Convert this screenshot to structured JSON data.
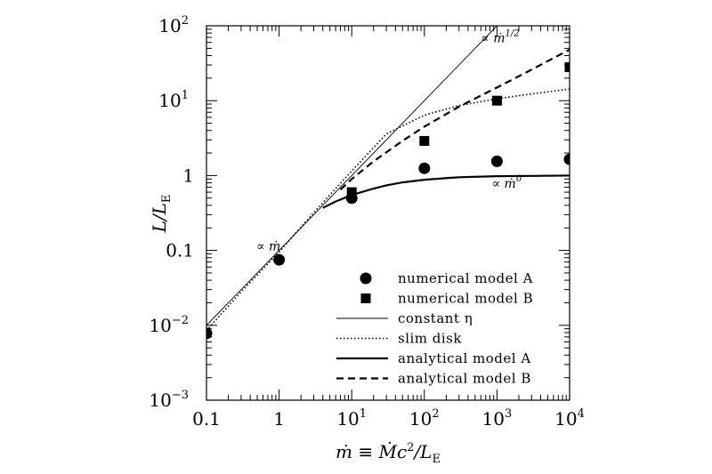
{
  "chart_data": {
    "type": "scatter",
    "x_scale": "log",
    "y_scale": "log",
    "xlim": [
      0.1,
      10000
    ],
    "ylim": [
      0.001,
      100
    ],
    "grid": false,
    "legend_position": "bottom-right",
    "xlabel": {
      "main": "ṁ ≡ Ṁc",
      "sup": "2",
      "mid": "/L",
      "sub": "E"
    },
    "ylabel": {
      "main": "L/L",
      "sub": "E"
    },
    "x_ticks": [
      {
        "value": 0.1,
        "base": "0.1",
        "exp": ""
      },
      {
        "value": 1,
        "base": "1",
        "exp": ""
      },
      {
        "value": 10,
        "base": "10",
        "exp": "1"
      },
      {
        "value": 100,
        "base": "10",
        "exp": "2"
      },
      {
        "value": 1000,
        "base": "10",
        "exp": "3"
      },
      {
        "value": 10000,
        "base": "10",
        "exp": "4"
      }
    ],
    "y_ticks": [
      {
        "value": 0.001,
        "base": "10",
        "exp": "−3"
      },
      {
        "value": 0.01,
        "base": "10",
        "exp": "−2"
      },
      {
        "value": 0.1,
        "base": "0.1",
        "exp": ""
      },
      {
        "value": 1,
        "base": "1",
        "exp": ""
      },
      {
        "value": 10,
        "base": "10",
        "exp": "1"
      },
      {
        "value": 100,
        "base": "10",
        "exp": "2"
      }
    ],
    "series": [
      {
        "name": "numerical model A",
        "style": "circle",
        "x": [
          0.1,
          1,
          10,
          100,
          1000,
          10000
        ],
        "y": [
          0.0078,
          0.075,
          0.5,
          1.25,
          1.55,
          1.65
        ]
      },
      {
        "name": "numerical model B",
        "style": "square",
        "x": [
          10,
          100,
          1000,
          10000
        ],
        "y": [
          0.6,
          2.9,
          10,
          28
        ]
      },
      {
        "name": "constant η",
        "style": "thin",
        "x": [
          0.1,
          1,
          10,
          100,
          1000
        ],
        "y": [
          0.01,
          0.1,
          1,
          10,
          100
        ]
      },
      {
        "name": "slim disk",
        "style": "dotted",
        "x": [
          0.1,
          0.3,
          1,
          3,
          10,
          30,
          100,
          300,
          1000,
          3000,
          10000
        ],
        "y": [
          0.0085,
          0.028,
          0.095,
          0.32,
          1.15,
          3.6,
          6.4,
          8.6,
          10.6,
          12.3,
          14.3
        ]
      },
      {
        "name": "analytical model A",
        "style": "solid",
        "x": [
          4,
          6,
          10,
          20,
          30,
          50,
          100,
          300,
          1000,
          3000,
          10000
        ],
        "y": [
          0.37,
          0.45,
          0.55,
          0.67,
          0.74,
          0.81,
          0.88,
          0.95,
          0.98,
          0.99,
          1.0
        ]
      },
      {
        "name": "analytical model B",
        "style": "dashed",
        "x": [
          7,
          10,
          20,
          50,
          100,
          300,
          1000,
          3000,
          10000
        ],
        "y": [
          0.65,
          0.9,
          1.55,
          2.9,
          4.5,
          8.3,
          15,
          26,
          48
        ]
      }
    ],
    "annotations": [
      {
        "text": "∝ ṁ",
        "sup": "",
        "x": 1.05,
        "y": 0.1
      },
      {
        "text": "∝ ṁ",
        "sup": "1/2",
        "x": 600,
        "y": 60
      },
      {
        "text": "∝ ṁ",
        "sup": "0",
        "x": 850,
        "y": 0.69
      }
    ]
  }
}
